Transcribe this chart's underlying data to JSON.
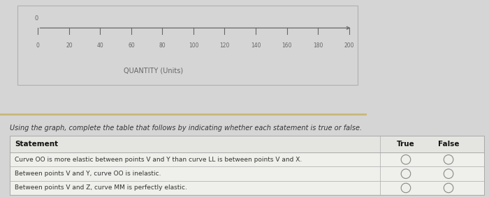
{
  "outer_bg": "#d5d5d5",
  "graph_bg": "#f0f0ec",
  "graph_border": "#b0b0b0",
  "axis_color": "#666666",
  "axis_label": "QUANTITY (Units)",
  "x_ticks": [
    0,
    20,
    40,
    60,
    80,
    100,
    120,
    140,
    160,
    180,
    200
  ],
  "y_zero_label": "0",
  "sep_line_color": "#c8b878",
  "instruction_text": "Using the graph, complete the table that follows by indicating whether each statement is true or false.",
  "table_header": "Statement",
  "col_true": "True",
  "col_false": "False",
  "rows": [
    "Curve OO is more elastic between points V and Y than curve LL is between points V and X.",
    "Between points V and Y, curve OO is inelastic.",
    "Between points V and Z, curve MM is perfectly elastic."
  ],
  "table_bg": "#efefeb",
  "table_header_bg": "#e4e4e0",
  "table_border": "#aaaaaa",
  "circle_color": "#888888",
  "text_color": "#333333",
  "header_text_color": "#111111",
  "instruction_fontsize": 7.0,
  "header_fontsize": 7.5,
  "row_fontsize": 6.5,
  "tick_fontsize": 6.0,
  "axis_label_fontsize": 7.0
}
